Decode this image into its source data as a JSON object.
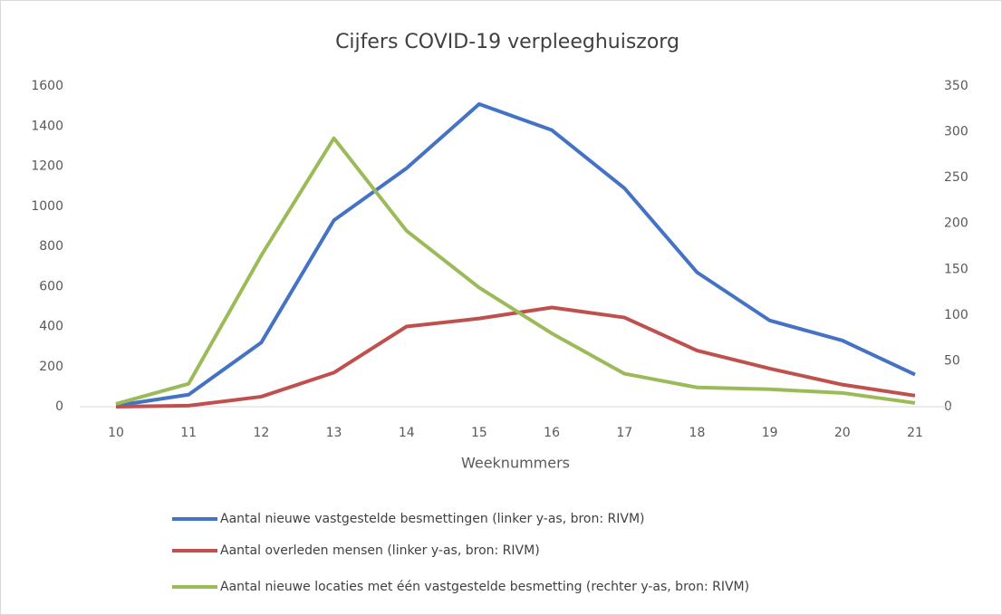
{
  "chart_data": {
    "type": "line",
    "title": "Cijfers COVID-19 verpleeghuiszorg",
    "x_label": "Weeknummers",
    "categories": [
      "10",
      "11",
      "12",
      "13",
      "14",
      "15",
      "16",
      "17",
      "18",
      "19",
      "20",
      "21"
    ],
    "series": [
      {
        "name": "Aantal nieuwe vastgestelde besmettingen  (linker y-as, bron: RIVM)",
        "color": "#4472c4",
        "values": [
          5,
          60,
          320,
          930,
          1190,
          1510,
          1380,
          1090,
          670,
          430,
          330,
          160
        ]
      },
      {
        "name": "Aantal overleden mensen (linker y-as, bron: RIVM)",
        "color": "#c0504d",
        "values": [
          0,
          5,
          50,
          170,
          400,
          440,
          495,
          445,
          280,
          190,
          110,
          55
        ]
      },
      {
        "name": "Aantal nieuwe locaties met één vastgestelde besmetting  (rechter y-as, bron: RIVM)",
        "color": "#9bbb59",
        "axis": "y2",
        "values": [
          3,
          25,
          165,
          293,
          192,
          130,
          80,
          36,
          21,
          19,
          15,
          4
        ]
      }
    ],
    "ylim": [
      0,
      1600
    ],
    "yticks": [
      0,
      200,
      400,
      600,
      800,
      1000,
      1200,
      1400,
      1600
    ],
    "y2lim": [
      0,
      350
    ],
    "y2ticks": [
      0,
      50,
      100,
      150,
      200,
      250,
      300,
      350
    ],
    "grid": false
  }
}
